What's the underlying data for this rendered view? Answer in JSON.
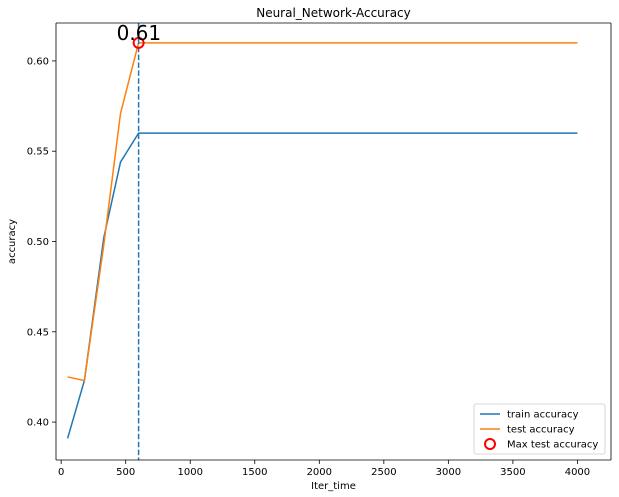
{
  "chart_data": {
    "type": "line",
    "title": "Neural_Network-Accuracy",
    "xlabel": "Iter_time",
    "ylabel": "accuracy",
    "xlim": [
      -40,
      4260
    ],
    "ylim": [
      0.379,
      0.621
    ],
    "xticks": [
      0,
      500,
      1000,
      1500,
      2000,
      2500,
      3000,
      3500,
      4000
    ],
    "yticks": [
      0.4,
      0.45,
      0.5,
      0.55,
      0.6
    ],
    "grid": false,
    "legend_position": "lower-right",
    "series": [
      {
        "name": "train accuracy",
        "color": "#1f77b4",
        "x": [
          50,
          180,
          330,
          460,
          600,
          4000
        ],
        "y": [
          0.391,
          0.423,
          0.502,
          0.544,
          0.56,
          0.56
        ]
      },
      {
        "name": "test accuracy",
        "color": "#ff7f0e",
        "x": [
          50,
          180,
          330,
          460,
          600,
          4000
        ],
        "y": [
          0.425,
          0.423,
          0.498,
          0.571,
          0.61,
          0.61
        ]
      }
    ],
    "markers": [
      {
        "name": "Max test accuracy",
        "color": "#ff0000",
        "x": 600,
        "y": 0.61,
        "label": "0.61"
      }
    ],
    "vlines": [
      {
        "x": 600,
        "color": "#1f77b4",
        "style": "dashed"
      }
    ]
  }
}
